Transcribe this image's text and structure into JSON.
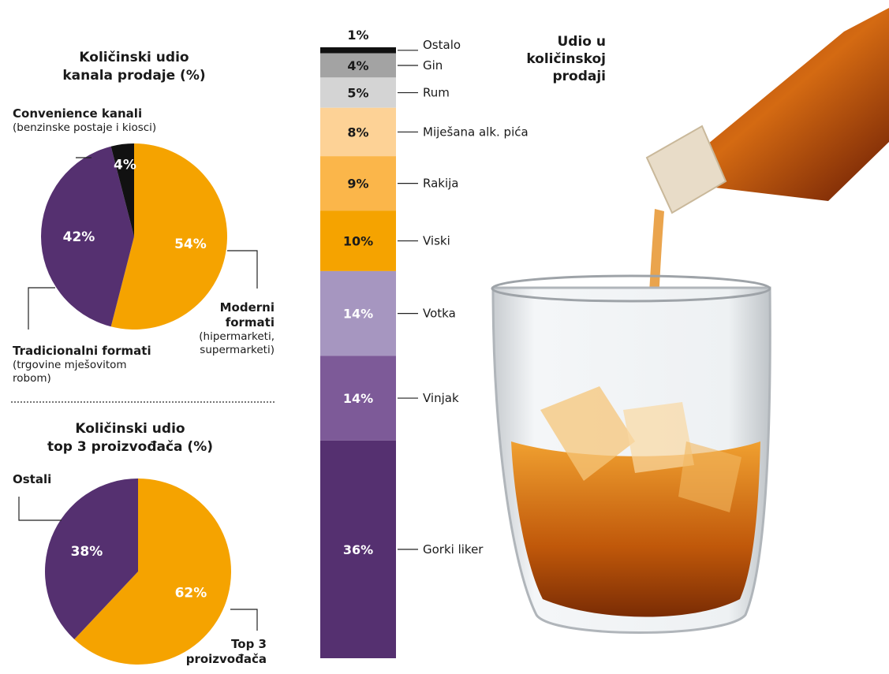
{
  "colors": {
    "purple": "#553070",
    "orange": "#f5a300",
    "black": "#111111"
  },
  "pie1": {
    "title_line1": "Količinski udio",
    "title_line2": "kanala prodaje (%)",
    "labels": {
      "convenience": "Convenience kanali",
      "convenience_sub": "(benzinske postaje i kiosci)",
      "traditional": "Tradicionalni formati",
      "traditional_sub1": "(trgovine mješovitom",
      "traditional_sub2": "robom)",
      "modern_1": "Moderni",
      "modern_2": "formati",
      "modern_sub1": "(hipermarketi,",
      "modern_sub2": "supermarketi)"
    }
  },
  "pie2": {
    "title_line1": "Količinski udio",
    "title_line2": "top 3 proizvođača (%)",
    "labels": {
      "others": "Ostali",
      "top3_1": "Top 3",
      "top3_2": "proizvođača"
    }
  },
  "stack": {
    "title_line1": "Udio u",
    "title_line2": "količinskoj",
    "title_line3": "prodaji"
  },
  "chart_data": [
    {
      "type": "pie",
      "title": "Količinski udio kanala prodaje (%)",
      "slices": [
        {
          "name": "Moderni formati (hipermarketi, supermarketi)",
          "value": 54,
          "label": "54%",
          "color": "#f5a300"
        },
        {
          "name": "Tradicionalni formati (trgovine mješovitom robom)",
          "value": 42,
          "label": "42%",
          "color": "#553070"
        },
        {
          "name": "Convenience kanali (benzinske postaje i kiosci)",
          "value": 4,
          "label": "4%",
          "color": "#111111"
        }
      ]
    },
    {
      "type": "pie",
      "title": "Količinski udio top 3 proizvođača (%)",
      "slices": [
        {
          "name": "Top 3 proizvođača",
          "value": 62,
          "label": "62%",
          "color": "#f5a300"
        },
        {
          "name": "Ostali",
          "value": 38,
          "label": "38%",
          "color": "#553070"
        }
      ]
    },
    {
      "type": "bar",
      "orientation": "stacked-vertical",
      "title": "Udio u količinskoj prodaji",
      "segments": [
        {
          "name": "Ostalo",
          "value": 1,
          "label": "1%",
          "color": "#111111",
          "text": "dark"
        },
        {
          "name": "Gin",
          "value": 4,
          "label": "4%",
          "color": "#a3a3a3",
          "text": "dark"
        },
        {
          "name": "Rum",
          "value": 5,
          "label": "5%",
          "color": "#d4d4d4",
          "text": "dark"
        },
        {
          "name": "Miješana alk. pića",
          "value": 8,
          "label": "8%",
          "color": "#fdd296",
          "text": "dark"
        },
        {
          "name": "Rakija",
          "value": 9,
          "label": "9%",
          "color": "#fbb64a",
          "text": "dark"
        },
        {
          "name": "Viski",
          "value": 10,
          "label": "10%",
          "color": "#f5a300",
          "text": "dark"
        },
        {
          "name": "Votka",
          "value": 14,
          "label": "14%",
          "color": "#a696c0",
          "text": "light"
        },
        {
          "name": "Vinjak",
          "value": 14,
          "label": "14%",
          "color": "#7d5a98",
          "text": "light"
        },
        {
          "name": "Gorki liker",
          "value": 36,
          "label": "36%",
          "color": "#553070",
          "text": "light"
        }
      ]
    }
  ]
}
